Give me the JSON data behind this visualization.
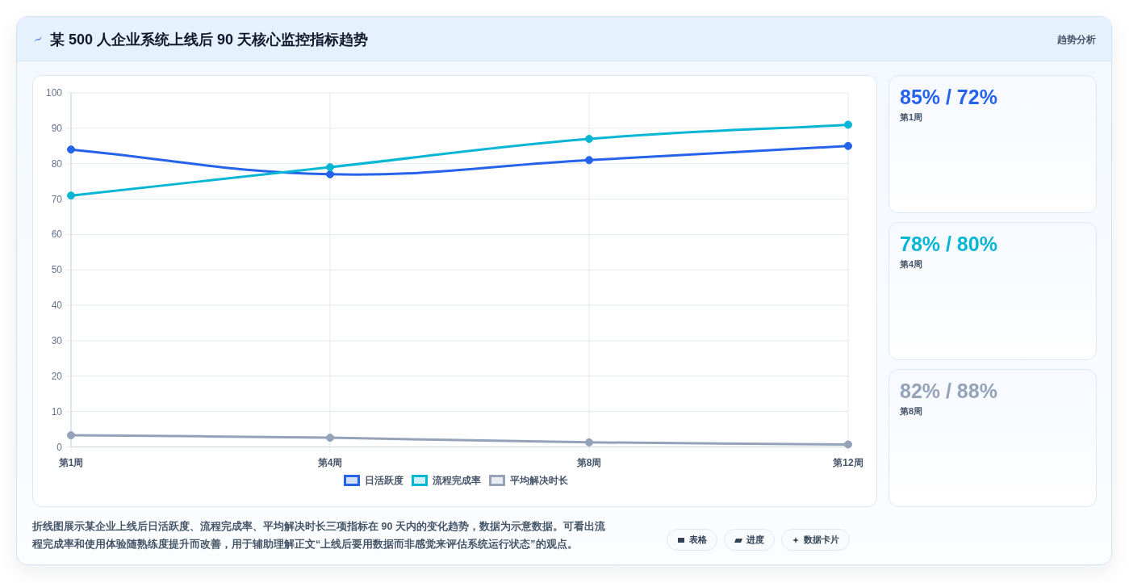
{
  "chart_data": {
    "type": "line",
    "title": "某 500 人企业系统上线后 90 天核心监控指标趋势",
    "categories": [
      "第1周",
      "第4周",
      "第8周",
      "第12周"
    ],
    "series": [
      {
        "name": "日活跃度",
        "color": "#2563eb",
        "values": [
          84,
          77,
          81,
          85
        ]
      },
      {
        "name": "流程完成率",
        "color": "#06b6d4",
        "values": [
          71,
          79,
          87,
          91
        ]
      },
      {
        "name": "平均解决时长",
        "color": "#94a3b8",
        "values": [
          3.3,
          2.6,
          1.3,
          0.7
        ]
      }
    ],
    "ylim": [
      0,
      100
    ],
    "yticks": [
      0,
      10,
      20,
      30,
      40,
      50,
      60,
      70,
      80,
      90,
      100
    ],
    "grid": true,
    "legend": "bottom",
    "marker": "circle",
    "line_style": "solid",
    "annotations": [
      "趋势分析",
      "85% / 72%",
      "第1周",
      "78% / 80%",
      "第4周",
      "82% / 88%",
      "第8周",
      "折线图展示某企业上线后日活跃度、流程完成率、平均解决时长三项指标在 90 天内的变化趋势，数据为示意数据。可看出流程完成率和使用体验随熟练度提升而改善，用于辅助理解正文“上线后要用数据而非感觉来评估系统运行状态”的观点。",
      "表格",
      "进度",
      "数据卡片"
    ]
  }
}
